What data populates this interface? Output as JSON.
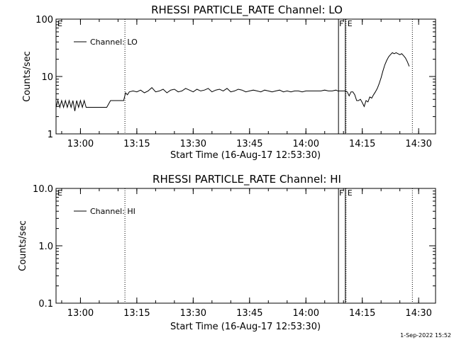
{
  "footer": {
    "timestamp": "1-Sep-2022 15:52"
  },
  "chart_data": [
    {
      "type": "line",
      "title": "RHESSI PARTICLE_RATE Channel: LO",
      "xlabel": "Start Time (16-Aug-17 12:53:30)",
      "ylabel": "Counts/sec",
      "y_scale": "log",
      "ylim": [
        1,
        100
      ],
      "xlim": [
        "12:53:30",
        "14:34:30"
      ],
      "x_ticks": [
        "13:00",
        "13:15",
        "13:30",
        "13:45",
        "14:00",
        "14:15",
        "14:30"
      ],
      "y_ticks": [
        "1",
        "10",
        "100"
      ],
      "legend": {
        "entries": [
          "Channel: LO"
        ],
        "placement": "top-left"
      },
      "grid": false,
      "flag_markers": {
        "E_times": [
          "12:53:30",
          "13:11:50",
          "14:10:40",
          "14:28:20"
        ],
        "F_interval": [
          "14:08:40",
          "14:10:30"
        ],
        "labels": [
          "E",
          "F",
          "E"
        ]
      },
      "series": [
        {
          "name": "Channel: LO",
          "x": [
            "12:53:30",
            "12:54:00",
            "12:54:30",
            "12:55:00",
            "12:55:30",
            "12:56:00",
            "12:56:30",
            "12:57:00",
            "12:57:30",
            "12:58:00",
            "12:58:30",
            "12:59:00",
            "12:59:30",
            "13:00:00",
            "13:00:30",
            "13:01:00",
            "13:01:30",
            "13:02:00",
            "13:03:00",
            "13:04:00",
            "13:05:00",
            "13:06:00",
            "13:07:00",
            "13:08:00",
            "13:09:00",
            "13:10:00",
            "13:11:00",
            "13:11:30",
            "13:12:00",
            "13:12:30",
            "13:13:00",
            "13:14:00",
            "13:15:00",
            "13:16:00",
            "13:17:00",
            "13:18:00",
            "13:19:00",
            "13:20:00",
            "13:21:00",
            "13:22:00",
            "13:23:00",
            "13:24:00",
            "13:25:00",
            "13:26:00",
            "13:27:00",
            "13:28:00",
            "13:29:00",
            "13:30:00",
            "13:31:00",
            "13:32:00",
            "13:33:00",
            "13:34:00",
            "13:35:00",
            "13:36:00",
            "13:37:00",
            "13:38:00",
            "13:39:00",
            "13:40:00",
            "13:41:00",
            "13:42:00",
            "13:43:00",
            "13:44:00",
            "13:45:00",
            "13:46:00",
            "13:47:00",
            "13:48:00",
            "13:49:00",
            "13:50:00",
            "13:51:00",
            "13:52:00",
            "13:53:00",
            "13:54:00",
            "13:55:00",
            "13:56:00",
            "13:57:00",
            "13:58:00",
            "13:59:00",
            "14:00:00",
            "14:01:00",
            "14:02:00",
            "14:03:00",
            "14:04:00",
            "14:05:00",
            "14:06:00",
            "14:07:00",
            "14:08:00",
            "14:08:30",
            "14:09:00",
            "14:09:30",
            "14:10:00",
            "14:10:30",
            "14:11:00",
            "14:11:30",
            "14:12:00",
            "14:12:30",
            "14:13:00",
            "14:13:30",
            "14:14:00",
            "14:14:30",
            "14:15:00",
            "14:15:30",
            "14:16:00",
            "14:16:30",
            "14:17:00",
            "14:17:30",
            "14:18:00",
            "14:18:30",
            "14:19:00",
            "14:19:30",
            "14:20:00",
            "14:20:30",
            "14:21:00",
            "14:21:30",
            "14:22:00",
            "14:22:30",
            "14:23:00",
            "14:23:30",
            "14:24:00",
            "14:24:30",
            "14:25:00",
            "14:25:30",
            "14:26:00",
            "14:26:30",
            "14:27:00",
            "14:27:30"
          ],
          "y": [
            2.9,
            3.8,
            2.9,
            3.8,
            2.9,
            3.8,
            2.9,
            3.8,
            2.9,
            3.8,
            2.5,
            3.8,
            2.9,
            3.8,
            2.9,
            3.8,
            2.9,
            2.9,
            2.9,
            2.9,
            2.9,
            2.9,
            2.9,
            3.8,
            3.8,
            3.8,
            3.8,
            3.8,
            5.2,
            4.8,
            5.4,
            5.6,
            5.4,
            5.8,
            5.2,
            5.6,
            6.4,
            5.4,
            5.6,
            6.0,
            5.2,
            5.8,
            6.0,
            5.4,
            5.6,
            6.2,
            5.8,
            5.4,
            6.0,
            5.6,
            5.8,
            6.2,
            5.4,
            5.8,
            6.0,
            5.6,
            6.2,
            5.4,
            5.6,
            6.0,
            5.8,
            5.4,
            5.6,
            5.8,
            5.6,
            5.4,
            5.8,
            5.6,
            5.4,
            5.6,
            5.8,
            5.4,
            5.6,
            5.4,
            5.6,
            5.6,
            5.4,
            5.6,
            5.6,
            5.6,
            5.6,
            5.6,
            5.8,
            5.6,
            5.6,
            5.8,
            5.6,
            5.6,
            5.6,
            5.6,
            5.6,
            5.4,
            4.6,
            5.4,
            5.4,
            4.8,
            3.8,
            3.8,
            4.0,
            3.5,
            3.0,
            3.8,
            3.6,
            4.4,
            4.2,
            4.8,
            5.4,
            6.2,
            7.5,
            9.5,
            12.5,
            16,
            19,
            22,
            24,
            26,
            25,
            26,
            25,
            24,
            25,
            23,
            21,
            18,
            15
          ]
        }
      ]
    },
    {
      "type": "line",
      "title": "RHESSI PARTICLE_RATE Channel: HI",
      "xlabel": "Start Time (16-Aug-17 12:53:30)",
      "ylabel": "Counts/sec",
      "y_scale": "log",
      "ylim": [
        0.1,
        10
      ],
      "xlim": [
        "12:53:30",
        "14:34:30"
      ],
      "x_ticks": [
        "13:00",
        "13:15",
        "13:30",
        "13:45",
        "14:00",
        "14:15",
        "14:30"
      ],
      "y_ticks": [
        "0.1",
        "1.0",
        "10.0"
      ],
      "legend": {
        "entries": [
          "Channel: HI"
        ],
        "placement": "top-left"
      },
      "grid": false,
      "flag_markers": {
        "E_times": [
          "12:53:30",
          "13:11:50",
          "14:10:40",
          "14:28:20"
        ],
        "F_interval": [
          "14:08:40",
          "14:10:30"
        ],
        "labels": [
          "E",
          "F",
          "E"
        ]
      },
      "series": [
        {
          "name": "Channel: HI",
          "x": [],
          "y": []
        }
      ]
    }
  ]
}
